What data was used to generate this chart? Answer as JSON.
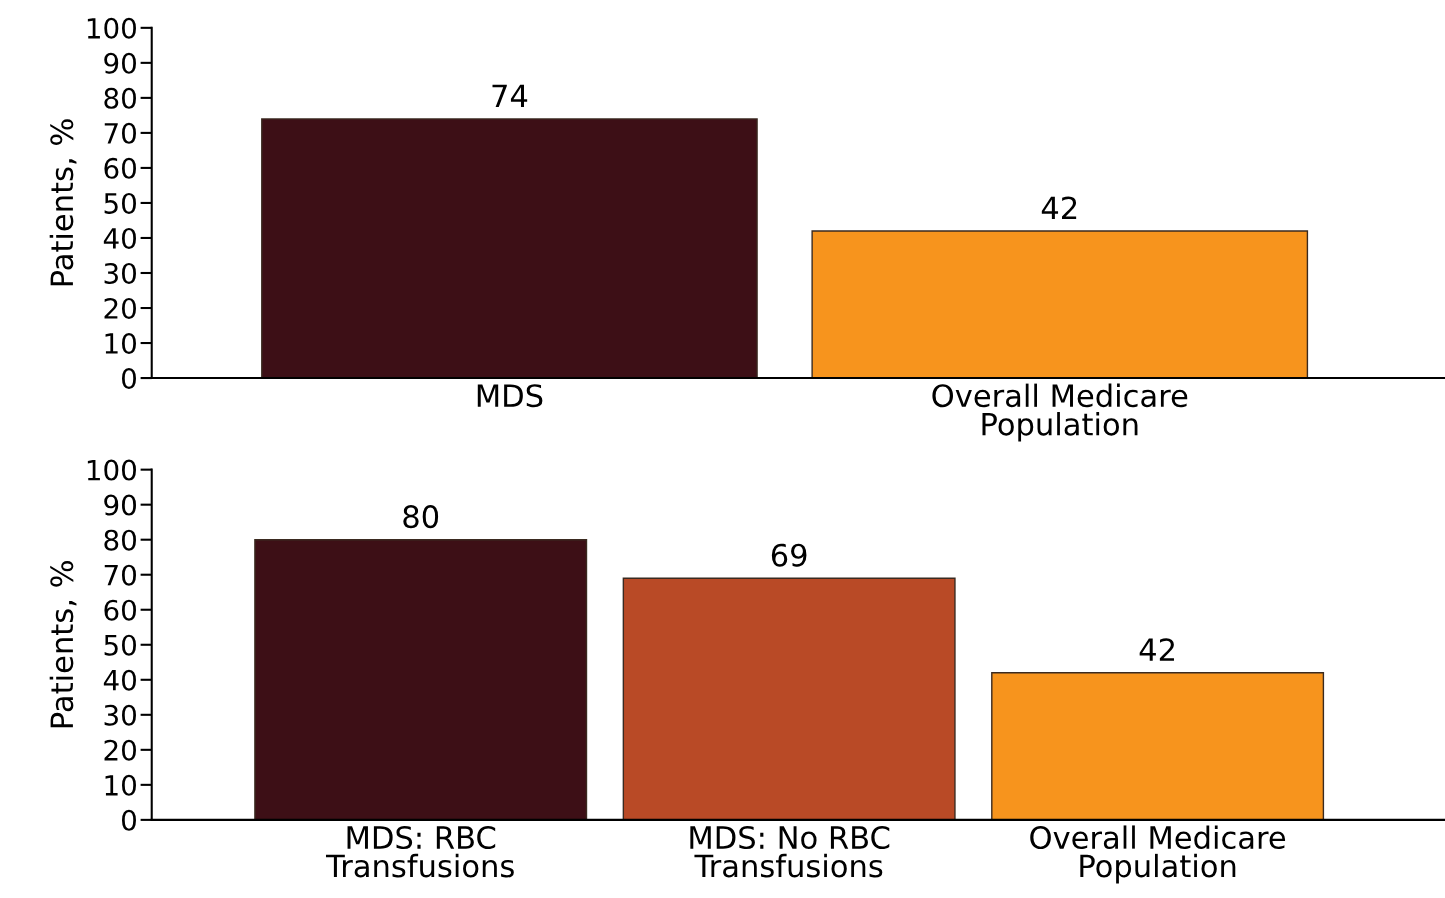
{
  "chart_data": [
    {
      "type": "bar",
      "ylabel": "Patients, %",
      "categories": [
        "MDS",
        "Overall Medicare\nPopulation"
      ],
      "values": [
        74,
        42
      ],
      "colors": [
        "#3d0f16",
        "#f7941d"
      ],
      "ylim": [
        0,
        100
      ],
      "yticks": [
        0,
        10,
        20,
        30,
        40,
        50,
        60,
        70,
        80,
        90,
        100
      ],
      "data_labels": true,
      "grid": false,
      "legend": false
    },
    {
      "type": "bar",
      "ylabel": "Patients, %",
      "categories": [
        "MDS: RBC\nTransfusions",
        "MDS: No RBC\nTransfusions",
        "Overall Medicare\nPopulation"
      ],
      "values": [
        80,
        69,
        42
      ],
      "colors": [
        "#3d0f16",
        "#b94a26",
        "#f7941d"
      ],
      "ylim": [
        0,
        100
      ],
      "yticks": [
        0,
        10,
        20,
        30,
        40,
        50,
        60,
        70,
        80,
        90,
        100
      ],
      "data_labels": true,
      "grid": false,
      "legend": false
    }
  ]
}
